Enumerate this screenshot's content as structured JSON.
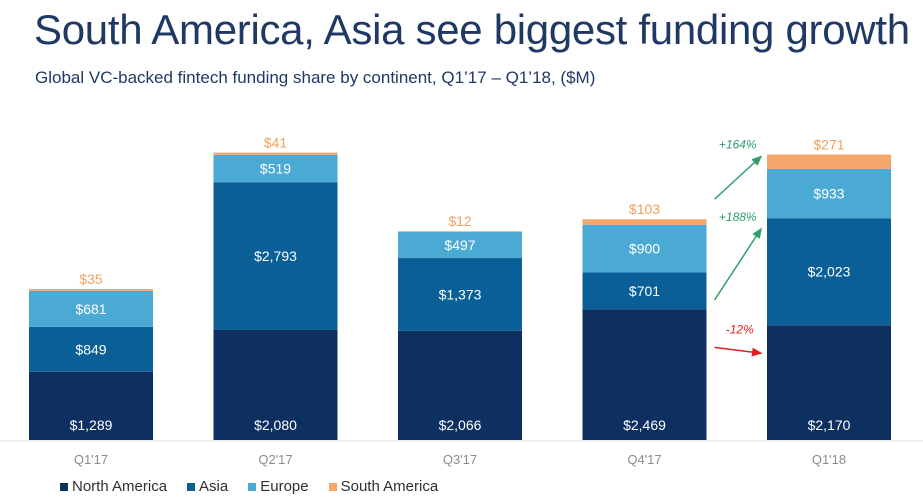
{
  "title": "South America, Asia see biggest funding growth",
  "subtitle": "Global VC-backed fintech funding share by continent, Q1’17 – Q1’18, ($M)",
  "chart_data": {
    "type": "bar",
    "stacked": true,
    "categories": [
      "Q1'17",
      "Q2'17",
      "Q3'17",
      "Q4'17",
      "Q1'18"
    ],
    "series": [
      {
        "name": "North America",
        "color": "#0d3060",
        "label_color": "#ffffff",
        "values": [
          1289,
          2080,
          2066,
          2469,
          2170
        ],
        "labels": [
          "$1,289",
          "$2,080",
          "$2,066",
          "$2,469",
          "$2,170"
        ]
      },
      {
        "name": "Asia",
        "color": "#0a5f96",
        "label_color": "#ffffff",
        "values": [
          849,
          2793,
          1373,
          701,
          2023
        ],
        "labels": [
          "$849",
          "$2,793",
          "$1,373",
          "$701",
          "$2,023"
        ]
      },
      {
        "name": "Europe",
        "color": "#4aaad4",
        "label_color": "#ffffff",
        "values": [
          681,
          519,
          497,
          900,
          933
        ],
        "labels": [
          "$681",
          "$519",
          "$497",
          "$900",
          "$933"
        ]
      },
      {
        "name": "South America",
        "color": "#f5a66a",
        "label_color": "#f0a05c",
        "values": [
          35,
          41,
          12,
          103,
          271
        ],
        "labels": [
          "$35",
          "$41",
          "$12",
          "$103",
          "$271"
        ]
      }
    ],
    "annotations": [
      {
        "text": "+164%",
        "series": "South America",
        "color": "#2e9e6a"
      },
      {
        "text": "+188%",
        "series": "Asia",
        "color": "#2e9e6a"
      },
      {
        "text": "-12%",
        "series": "North America",
        "color": "#e02020"
      }
    ],
    "legend_position": "bottom-left",
    "grid": false
  }
}
